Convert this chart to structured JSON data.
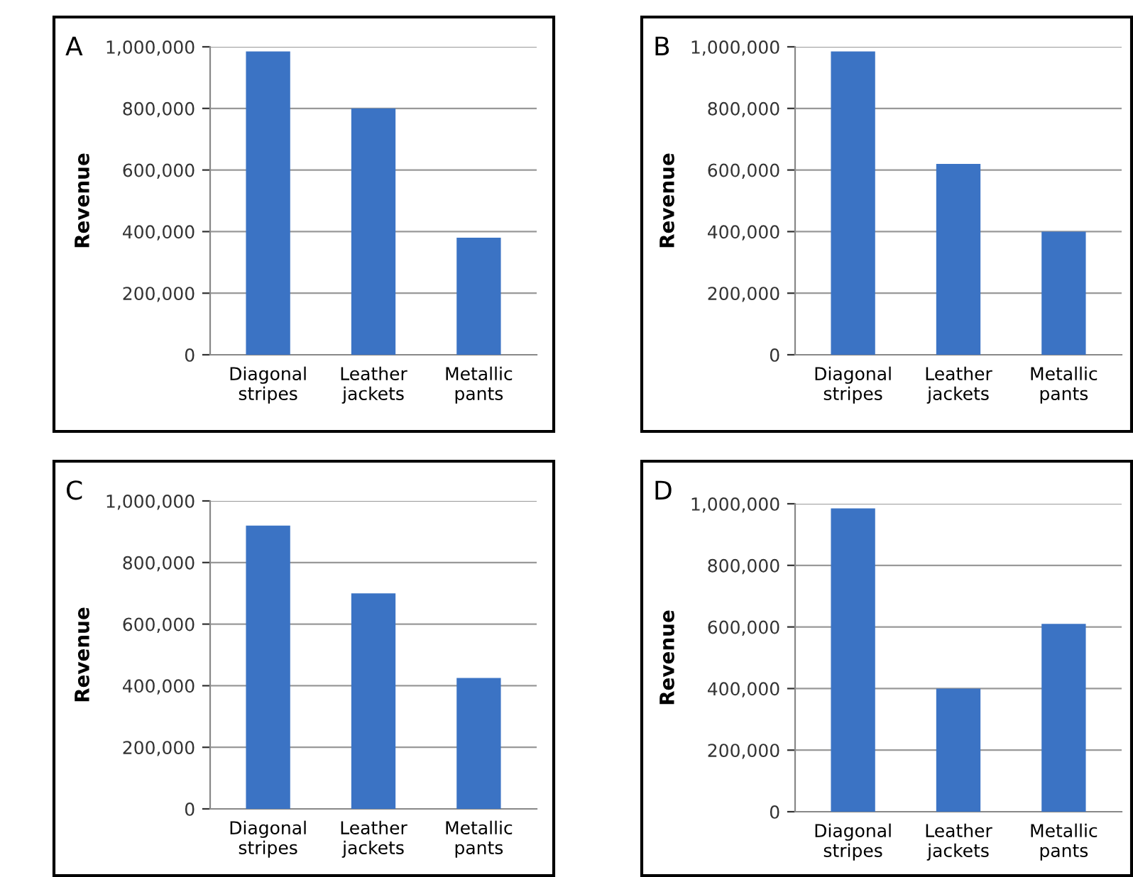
{
  "chart_data": [
    {
      "type": "bar",
      "title": "A",
      "ylabel": "Revenue",
      "categories": [
        "Diagonal\nstripes",
        "Leather\njackets",
        "Metallic\npants"
      ],
      "values": [
        985000,
        800000,
        380000
      ],
      "color": "#3b73c4",
      "ylim": [
        0,
        1000000
      ],
      "yticks": [
        {
          "value": 0,
          "label": "0"
        },
        {
          "value": 200000,
          "label": "200,000"
        },
        {
          "value": 400000,
          "label": "400,000"
        },
        {
          "value": 600000,
          "label": "600,000"
        },
        {
          "value": 800000,
          "label": "800,000"
        },
        {
          "value": 1000000,
          "label": "1,000,000"
        }
      ],
      "grid": "y"
    },
    {
      "type": "bar",
      "title": "B",
      "ylabel": "Revenue",
      "categories": [
        "Diagonal\nstripes",
        "Leather\njackets",
        "Metallic\npants"
      ],
      "values": [
        985000,
        620000,
        400000
      ],
      "color": "#3b73c4",
      "ylim": [
        0,
        1000000
      ],
      "yticks": [
        {
          "value": 0,
          "label": "0"
        },
        {
          "value": 200000,
          "label": "200,000"
        },
        {
          "value": 400000,
          "label": "400,000"
        },
        {
          "value": 600000,
          "label": "600,000"
        },
        {
          "value": 800000,
          "label": "800,000"
        },
        {
          "value": 1000000,
          "label": "1,000,000"
        }
      ],
      "grid": "y"
    },
    {
      "type": "bar",
      "title": "C",
      "ylabel": "Revenue",
      "categories": [
        "Diagonal\nstripes",
        "Leather\njackets",
        "Metallic\npants"
      ],
      "values": [
        920000,
        700000,
        425000
      ],
      "color": "#3b73c4",
      "ylim": [
        0,
        1000000
      ],
      "yticks": [
        {
          "value": 0,
          "label": "0"
        },
        {
          "value": 200000,
          "label": "200,000"
        },
        {
          "value": 400000,
          "label": "400,000"
        },
        {
          "value": 600000,
          "label": "600,000"
        },
        {
          "value": 800000,
          "label": "800,000"
        },
        {
          "value": 1000000,
          "label": "1,000,000"
        }
      ],
      "grid": "y"
    },
    {
      "type": "bar",
      "title": "D",
      "ylabel": "Revenue",
      "categories": [
        "Diagonal\nstripes",
        "Leather\njackets",
        "Metallic\npants"
      ],
      "values": [
        985000,
        400000,
        610000
      ],
      "color": "#3b73c4",
      "ylim": [
        0,
        1000000
      ],
      "yticks": [
        {
          "value": 0,
          "label": "0"
        },
        {
          "value": 200000,
          "label": "200,000"
        },
        {
          "value": 400000,
          "label": "400,000"
        },
        {
          "value": 600000,
          "label": "600,000"
        },
        {
          "value": 800000,
          "label": "800,000"
        },
        {
          "value": 1000000,
          "label": "1,000,000"
        }
      ],
      "grid": "y"
    }
  ]
}
